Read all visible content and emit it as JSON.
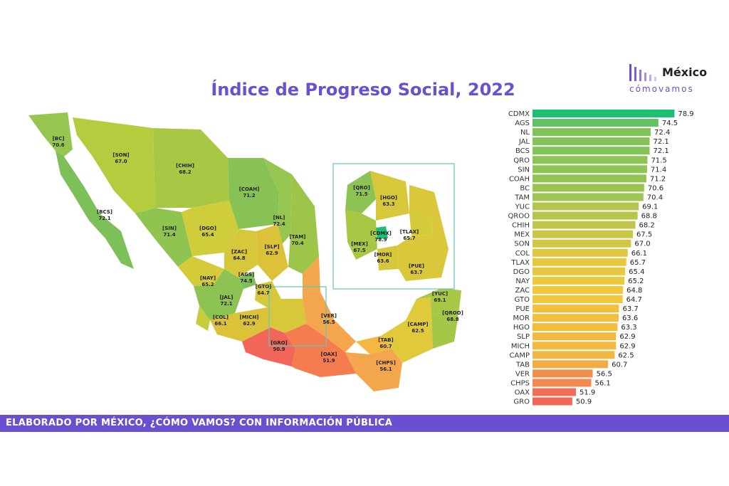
{
  "title": "Índice de Progreso Social, 2022",
  "logo": {
    "word1": "México",
    "word2": "cómovamos"
  },
  "footer": "ELABORADO POR MÉXICO, ¿CÓMO VAMOS? CON INFORMACIÓN PÚBLICA",
  "colors": {
    "accent": "#6a4fd0",
    "high": "#1dbf73",
    "low": "#f2665a"
  },
  "chart_data": {
    "type": "bar",
    "title": "Índice de Progreso Social, 2022",
    "orientation": "horizontal",
    "categories": [
      "CDMX",
      "AGS",
      "NL",
      "JAL",
      "BCS",
      "QRO",
      "SIN",
      "COAH",
      "BC",
      "TAM",
      "YUC",
      "QROO",
      "CHIH",
      "MEX",
      "SON",
      "COL",
      "TLAX",
      "DGO",
      "NAY",
      "ZAC",
      "GTO",
      "PUE",
      "MOR",
      "HGO",
      "SLP",
      "MICH",
      "CAMP",
      "TAB",
      "VER",
      "CHPS",
      "OAX",
      "GRO"
    ],
    "values": [
      78.9,
      74.5,
      72.4,
      72.1,
      72.1,
      71.5,
      71.4,
      71.2,
      70.6,
      70.4,
      69.1,
      68.8,
      68.2,
      67.5,
      67.0,
      66.1,
      65.7,
      65.4,
      65.2,
      64.8,
      64.7,
      63.7,
      63.6,
      63.3,
      62.9,
      62.9,
      62.5,
      60.7,
      56.5,
      56.1,
      51.9,
      50.9
    ]
  },
  "map_labels": [
    {
      "code": "BC",
      "value": "70.6"
    },
    {
      "code": "SON",
      "value": "67.0"
    },
    {
      "code": "CHIH",
      "value": "68.2"
    },
    {
      "code": "BCS",
      "value": "72.1"
    },
    {
      "code": "COAH",
      "value": "71.2"
    },
    {
      "code": "SIN",
      "value": "71.4"
    },
    {
      "code": "DGO",
      "value": "65.4"
    },
    {
      "code": "NL",
      "value": "72.4"
    },
    {
      "code": "TAM",
      "value": "70.4"
    },
    {
      "code": "ZAC",
      "value": "64.8"
    },
    {
      "code": "SLP",
      "value": "62.9"
    },
    {
      "code": "NAY",
      "value": "65.2"
    },
    {
      "code": "AGS",
      "value": "74.5"
    },
    {
      "code": "GTO",
      "value": "64.7"
    },
    {
      "code": "JAL",
      "value": "72.1"
    },
    {
      "code": "COL",
      "value": "66.1"
    },
    {
      "code": "MICH",
      "value": "62.9"
    },
    {
      "code": "VER",
      "value": "56.5"
    },
    {
      "code": "GRO",
      "value": "50.9"
    },
    {
      "code": "OAX",
      "value": "51.9"
    },
    {
      "code": "TAB",
      "value": "60.7"
    },
    {
      "code": "CHPS",
      "value": "56.1"
    },
    {
      "code": "CAMP",
      "value": "62.5"
    },
    {
      "code": "YUC",
      "value": "69.1"
    },
    {
      "code": "QROO",
      "value": "68.8"
    }
  ],
  "inset_labels": [
    {
      "code": "QRO",
      "value": "71.5"
    },
    {
      "code": "HGO",
      "value": "63.3"
    },
    {
      "code": "CDMX",
      "value": "78.9"
    },
    {
      "code": "TLAX",
      "value": "65.7"
    },
    {
      "code": "MEX",
      "value": "67.5"
    },
    {
      "code": "MOR",
      "value": "63.6"
    },
    {
      "code": "PUE",
      "value": "63.7"
    }
  ]
}
